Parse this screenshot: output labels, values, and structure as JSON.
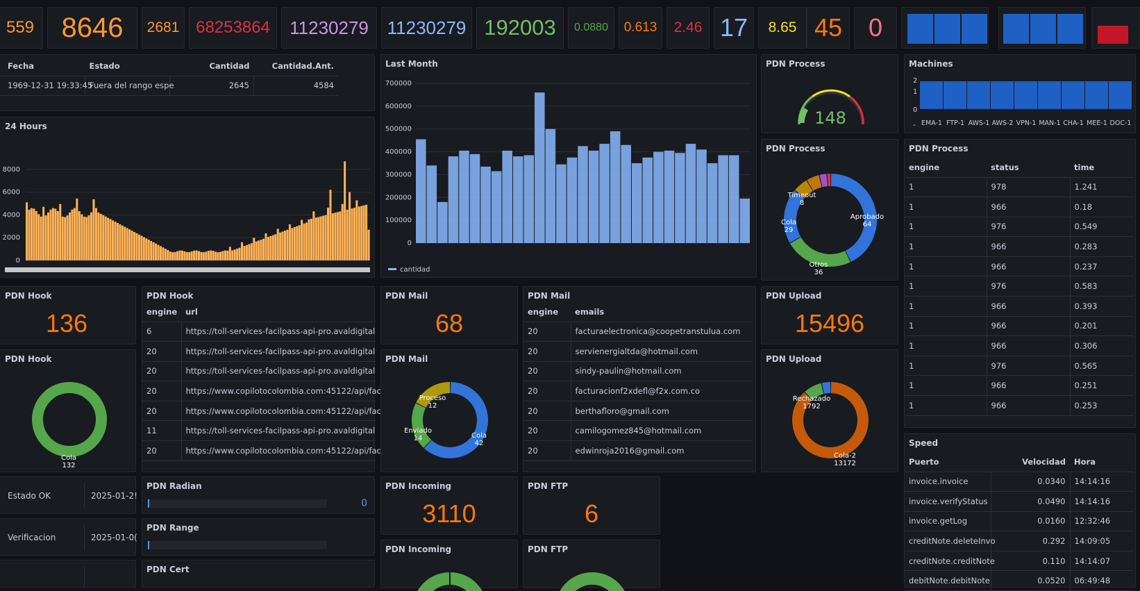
{
  "colors": {
    "orange": "#ff9830",
    "deep_orange": "#ff780a",
    "red": "#e02f44",
    "purple": "#ca95e5",
    "blue": "#8ab8ff",
    "green": "#73bf69",
    "yellow": "#fade2a",
    "salmon": "#ff7383",
    "bar_blue": "#1f60c4",
    "bar_red": "#c4162a",
    "bar_orange": "#ffb357",
    "bar_light_blue": "#8ab8ff"
  },
  "top_stats": [
    "559",
    "8646",
    "2681",
    "68253864",
    "11230279",
    "11230279",
    "192003",
    "0.0880",
    "0.613",
    "2.46",
    "17",
    "8.65",
    "45",
    "0"
  ],
  "table_main": {
    "headers": [
      "Fecha",
      "Estado",
      "Cantidad",
      "Cantidad.Ant."
    ],
    "rows": [
      [
        "1969-12-31 19:33:45",
        "Fuera del rango espe",
        "2645",
        "4584"
      ]
    ]
  },
  "hours_panel": {
    "title": "24 Hours",
    "y_ticks": [
      "8000",
      "6000",
      "4000",
      "2000",
      "0"
    ]
  },
  "last_month": {
    "title": "Last Month",
    "y_ticks": [
      "700000",
      "600000",
      "500000",
      "400000",
      "300000",
      "200000",
      "100000",
      "0"
    ],
    "legend": "cantidad"
  },
  "pdn_process_gauge": {
    "title": "PDN Process",
    "value": "148"
  },
  "pdn_process_donut": {
    "title": "PDN Process",
    "labels": [
      {
        "name": "Aprobado",
        "value": "64"
      },
      {
        "name": "Otros",
        "value": "36"
      },
      {
        "name": "Cola",
        "value": "29"
      },
      {
        "name": "Timeout",
        "value": "8"
      }
    ]
  },
  "machines": {
    "title": "Machines",
    "y_ticks": [
      "2",
      "1",
      "0",
      "-"
    ],
    "names": [
      "EMA-1",
      "FTP-1",
      "AWS-1",
      "AWS-2",
      "VPN-1",
      "MAN-1",
      "CHA-1",
      "MEE-1",
      "DOC-1"
    ]
  },
  "pdn_process_table": {
    "title": "PDN Process",
    "headers": [
      "engine",
      "status",
      "time"
    ],
    "rows": [
      [
        "1",
        "978",
        "1.241"
      ],
      [
        "1",
        "966",
        "0.18"
      ],
      [
        "1",
        "976",
        "0.549"
      ],
      [
        "1",
        "966",
        "0.283"
      ],
      [
        "1",
        "966",
        "0.237"
      ],
      [
        "1",
        "976",
        "0.583"
      ],
      [
        "1",
        "966",
        "0.393"
      ],
      [
        "1",
        "966",
        "0.201"
      ],
      [
        "1",
        "966",
        "0.306"
      ],
      [
        "1",
        "976",
        "0.565"
      ],
      [
        "1",
        "966",
        "0.251"
      ],
      [
        "1",
        "966",
        "0.253"
      ]
    ]
  },
  "pdn_hook_stat": {
    "title": "PDN Hook",
    "value": "136"
  },
  "pdn_hook_table": {
    "title": "PDN Hook",
    "headers": [
      "engine",
      "url"
    ],
    "rows": [
      [
        "6",
        "https://toll-services-facilpass-api-pro.avaldigital"
      ],
      [
        "20",
        "https://toll-services-facilpass-api-pro.avaldigital"
      ],
      [
        "20",
        "https://toll-services-facilpass-api-pro.avaldigital"
      ],
      [
        "20",
        "https://www.copilotocolombia.com:45122/api/fac"
      ],
      [
        "20",
        "https://www.copilotocolombia.com:45122/api/fac"
      ],
      [
        "11",
        "https://toll-services-facilpass-api-pro.avaldigital"
      ],
      [
        "20",
        "https://www.copilotocolombia.com:45122/api/fac"
      ]
    ]
  },
  "pdn_hook_donut": {
    "title": "PDN Hook",
    "label": "Cola",
    "value": "132"
  },
  "pdn_mail_stat": {
    "title": "PDN Mail",
    "value": "68"
  },
  "pdn_mail_donut": {
    "title": "PDN Mail",
    "labels": [
      {
        "name": "Proceso",
        "value": "12"
      },
      {
        "name": "Enviado",
        "value": "14"
      },
      {
        "name": "Cola",
        "value": "42"
      }
    ]
  },
  "pdn_mail_table": {
    "title": "PDN Mail",
    "headers": [
      "engine",
      "emails"
    ],
    "rows": [
      [
        "20",
        "facturaelectronica@coopetranstulua.com"
      ],
      [
        "20",
        "servienergialtda@hotmail.com"
      ],
      [
        "20",
        "sindy-paulin@hotmail.com"
      ],
      [
        "20",
        "facturacionf2xdefl@f2x.com.co"
      ],
      [
        "20",
        "berthafloro@gmail.com"
      ],
      [
        "20",
        "camilogomez845@hotmail.com"
      ],
      [
        "20",
        "edwinroja2016@gmail.com"
      ]
    ]
  },
  "pdn_upload_stat": {
    "title": "PDN Upload",
    "value": "15496"
  },
  "pdn_upload_donut": {
    "title": "PDN Upload",
    "labels": [
      {
        "name": "Rechazado",
        "value": "1792"
      },
      {
        "name": "Cola-2",
        "value": "13172"
      }
    ]
  },
  "status_rows": [
    {
      "label": "Estado OK",
      "date": "2025-01-2!"
    },
    {
      "label": "Verificacion",
      "date": "2025-01-0("
    }
  ],
  "pdn_radian": {
    "title": "PDN Radian",
    "value": "0"
  },
  "pdn_range": {
    "title": "PDN Range"
  },
  "pdn_cert": {
    "title": "PDN Cert"
  },
  "pdn_incoming_stat": {
    "title": "PDN Incoming",
    "value": "3110"
  },
  "pdn_incoming_2": {
    "title": "PDN Incoming"
  },
  "pdn_ftp_stat": {
    "title": "PDN FTP",
    "value": "6"
  },
  "pdn_ftp_2": {
    "title": "PDN FTP"
  },
  "speed": {
    "title": "Speed",
    "headers": [
      "Puerto",
      "Velocidad",
      "Hora"
    ],
    "rows": [
      [
        "invoice.invoice",
        "0.0340",
        "14:14:16"
      ],
      [
        "invoice.verifyStatus",
        "0.0490",
        "14:14:16"
      ],
      [
        "invoice.getLog",
        "0.0160",
        "12:32:46"
      ],
      [
        "creditNote.deleteInvo",
        "0.292",
        "14:09:05"
      ],
      [
        "creditNote.creditNote",
        "0.110",
        "14:14:07"
      ],
      [
        "debitNote.debitNote",
        "0.0520",
        "06:49:48"
      ]
    ]
  }
}
